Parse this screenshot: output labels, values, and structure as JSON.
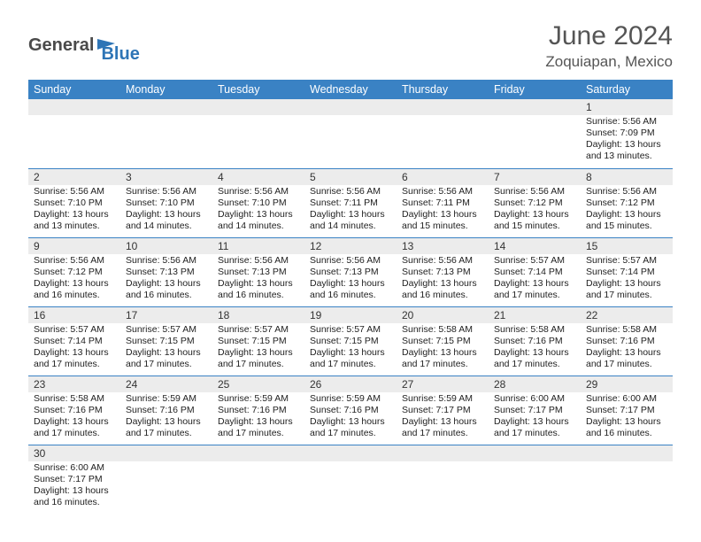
{
  "logo": {
    "general": "General",
    "blue": "Blue"
  },
  "title": "June 2024",
  "location": "Zoquiapan, Mexico",
  "colors": {
    "header_bg": "#3a82c4",
    "header_text": "#ffffff",
    "daynum_bg": "#ececec",
    "row_border": "#3a82c4",
    "logo_gray": "#4a4a4a",
    "logo_blue": "#2e75b6",
    "title_color": "#555555"
  },
  "weekdays": [
    "Sunday",
    "Monday",
    "Tuesday",
    "Wednesday",
    "Thursday",
    "Friday",
    "Saturday"
  ],
  "weeks": [
    [
      null,
      null,
      null,
      null,
      null,
      null,
      {
        "n": "1",
        "sr": "5:56 AM",
        "ss": "7:09 PM",
        "dl": "13 hours and 13 minutes."
      }
    ],
    [
      {
        "n": "2",
        "sr": "5:56 AM",
        "ss": "7:10 PM",
        "dl": "13 hours and 13 minutes."
      },
      {
        "n": "3",
        "sr": "5:56 AM",
        "ss": "7:10 PM",
        "dl": "13 hours and 14 minutes."
      },
      {
        "n": "4",
        "sr": "5:56 AM",
        "ss": "7:10 PM",
        "dl": "13 hours and 14 minutes."
      },
      {
        "n": "5",
        "sr": "5:56 AM",
        "ss": "7:11 PM",
        "dl": "13 hours and 14 minutes."
      },
      {
        "n": "6",
        "sr": "5:56 AM",
        "ss": "7:11 PM",
        "dl": "13 hours and 15 minutes."
      },
      {
        "n": "7",
        "sr": "5:56 AM",
        "ss": "7:12 PM",
        "dl": "13 hours and 15 minutes."
      },
      {
        "n": "8",
        "sr": "5:56 AM",
        "ss": "7:12 PM",
        "dl": "13 hours and 15 minutes."
      }
    ],
    [
      {
        "n": "9",
        "sr": "5:56 AM",
        "ss": "7:12 PM",
        "dl": "13 hours and 16 minutes."
      },
      {
        "n": "10",
        "sr": "5:56 AM",
        "ss": "7:13 PM",
        "dl": "13 hours and 16 minutes."
      },
      {
        "n": "11",
        "sr": "5:56 AM",
        "ss": "7:13 PM",
        "dl": "13 hours and 16 minutes."
      },
      {
        "n": "12",
        "sr": "5:56 AM",
        "ss": "7:13 PM",
        "dl": "13 hours and 16 minutes."
      },
      {
        "n": "13",
        "sr": "5:56 AM",
        "ss": "7:13 PM",
        "dl": "13 hours and 16 minutes."
      },
      {
        "n": "14",
        "sr": "5:57 AM",
        "ss": "7:14 PM",
        "dl": "13 hours and 17 minutes."
      },
      {
        "n": "15",
        "sr": "5:57 AM",
        "ss": "7:14 PM",
        "dl": "13 hours and 17 minutes."
      }
    ],
    [
      {
        "n": "16",
        "sr": "5:57 AM",
        "ss": "7:14 PM",
        "dl": "13 hours and 17 minutes."
      },
      {
        "n": "17",
        "sr": "5:57 AM",
        "ss": "7:15 PM",
        "dl": "13 hours and 17 minutes."
      },
      {
        "n": "18",
        "sr": "5:57 AM",
        "ss": "7:15 PM",
        "dl": "13 hours and 17 minutes."
      },
      {
        "n": "19",
        "sr": "5:57 AM",
        "ss": "7:15 PM",
        "dl": "13 hours and 17 minutes."
      },
      {
        "n": "20",
        "sr": "5:58 AM",
        "ss": "7:15 PM",
        "dl": "13 hours and 17 minutes."
      },
      {
        "n": "21",
        "sr": "5:58 AM",
        "ss": "7:16 PM",
        "dl": "13 hours and 17 minutes."
      },
      {
        "n": "22",
        "sr": "5:58 AM",
        "ss": "7:16 PM",
        "dl": "13 hours and 17 minutes."
      }
    ],
    [
      {
        "n": "23",
        "sr": "5:58 AM",
        "ss": "7:16 PM",
        "dl": "13 hours and 17 minutes."
      },
      {
        "n": "24",
        "sr": "5:59 AM",
        "ss": "7:16 PM",
        "dl": "13 hours and 17 minutes."
      },
      {
        "n": "25",
        "sr": "5:59 AM",
        "ss": "7:16 PM",
        "dl": "13 hours and 17 minutes."
      },
      {
        "n": "26",
        "sr": "5:59 AM",
        "ss": "7:16 PM",
        "dl": "13 hours and 17 minutes."
      },
      {
        "n": "27",
        "sr": "5:59 AM",
        "ss": "7:17 PM",
        "dl": "13 hours and 17 minutes."
      },
      {
        "n": "28",
        "sr": "6:00 AM",
        "ss": "7:17 PM",
        "dl": "13 hours and 17 minutes."
      },
      {
        "n": "29",
        "sr": "6:00 AM",
        "ss": "7:17 PM",
        "dl": "13 hours and 16 minutes."
      }
    ],
    [
      {
        "n": "30",
        "sr": "6:00 AM",
        "ss": "7:17 PM",
        "dl": "13 hours and 16 minutes."
      },
      null,
      null,
      null,
      null,
      null,
      null
    ]
  ],
  "labels": {
    "sunrise": "Sunrise:",
    "sunset": "Sunset:",
    "daylight": "Daylight:"
  }
}
